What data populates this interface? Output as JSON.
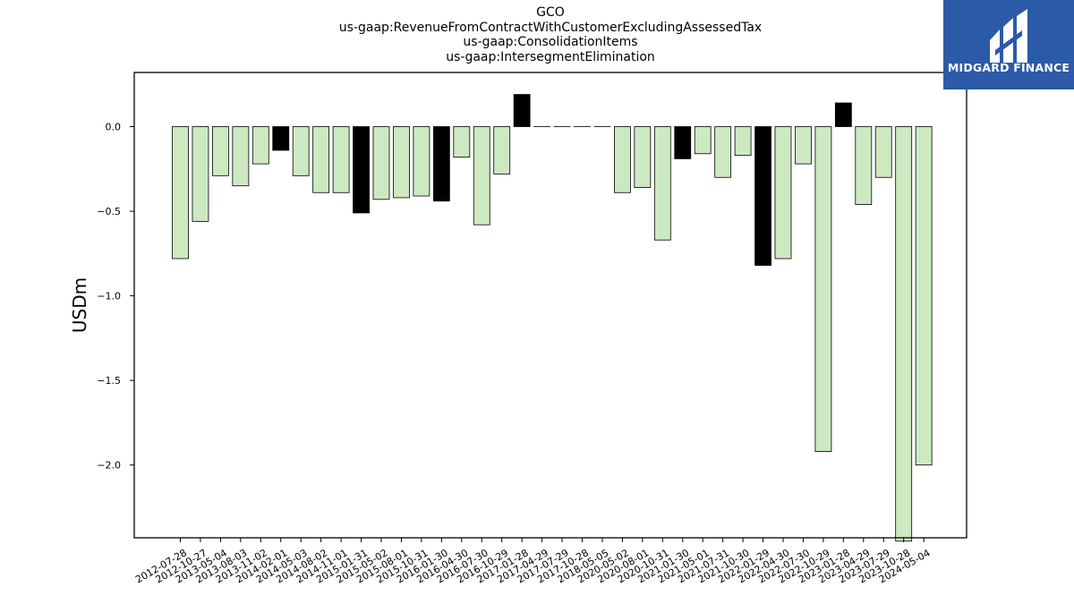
{
  "chart_data": {
    "type": "bar",
    "title_lines": [
      "GCO",
      "us-gaap:RevenueFromContractWithCustomerExcludingAssessedTax",
      "us-gaap:ConsolidationItems",
      "us-gaap:IntersegmentElimination"
    ],
    "xlabel": "",
    "ylabel": "USDm",
    "ylim": [
      -2.43,
      0.32
    ],
    "yticks": [
      0.0,
      -0.5,
      -1.0,
      -1.5,
      -2.0
    ],
    "ytick_labels": [
      "0.0",
      "−0.5",
      "−1.0",
      "−1.5",
      "−2.0"
    ],
    "grid": false,
    "legend": "none",
    "colors": {
      "positive_bar": "#cce9c2",
      "highlight_bar": "#000000",
      "bar_edge": "#000000"
    },
    "categories": [
      "2012-07-28",
      "2012-10-27",
      "2013-05-04",
      "2013-08-03",
      "2013-11-02",
      "2014-02-01",
      "2014-05-03",
      "2014-08-02",
      "2014-11-01",
      "2015-01-31",
      "2015-05-02",
      "2015-08-01",
      "2015-10-31",
      "2016-01-30",
      "2016-04-30",
      "2016-07-30",
      "2016-10-29",
      "2017-01-28",
      "2017-04-29",
      "2017-07-29",
      "2017-10-28",
      "2018-05-05",
      "2020-05-02",
      "2020-08-01",
      "2020-10-31",
      "2021-01-30",
      "2021-05-01",
      "2021-07-31",
      "2021-10-30",
      "2022-01-29",
      "2022-04-30",
      "2022-07-30",
      "2022-10-29",
      "2023-01-28",
      "2023-04-29",
      "2023-07-29",
      "2023-10-28",
      "2024-05-04"
    ],
    "values": [
      -0.78,
      -0.56,
      -0.29,
      -0.35,
      -0.22,
      -0.14,
      -0.29,
      -0.39,
      -0.39,
      -0.51,
      -0.43,
      -0.42,
      -0.41,
      -0.44,
      -0.18,
      -0.58,
      -0.28,
      0.19,
      0.0,
      0.0,
      0.0,
      0.0,
      -0.39,
      -0.36,
      -0.67,
      -0.19,
      -0.16,
      -0.3,
      -0.17,
      -0.82,
      -0.78,
      -0.22,
      -1.92,
      0.14,
      -0.46,
      -0.3,
      -2.45,
      -2.0
    ],
    "highlight": [
      false,
      false,
      false,
      false,
      false,
      true,
      false,
      false,
      false,
      true,
      false,
      false,
      false,
      true,
      false,
      false,
      false,
      true,
      false,
      false,
      false,
      false,
      false,
      false,
      false,
      true,
      false,
      false,
      false,
      true,
      false,
      false,
      false,
      true,
      false,
      false,
      false,
      false
    ]
  },
  "logo": {
    "name": "MIDGARD FINANCE"
  }
}
